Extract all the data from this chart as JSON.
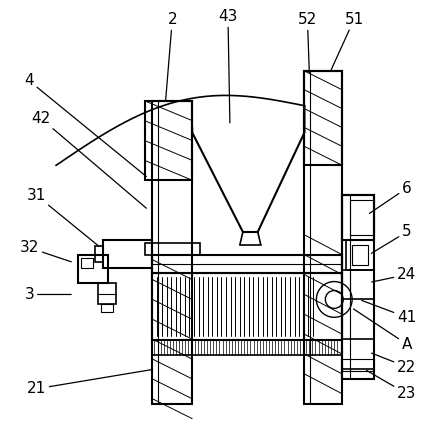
{
  "background_color": "#ffffff",
  "line_color": "#000000",
  "figsize": [
    4.43,
    4.28
  ],
  "dpi": 100
}
